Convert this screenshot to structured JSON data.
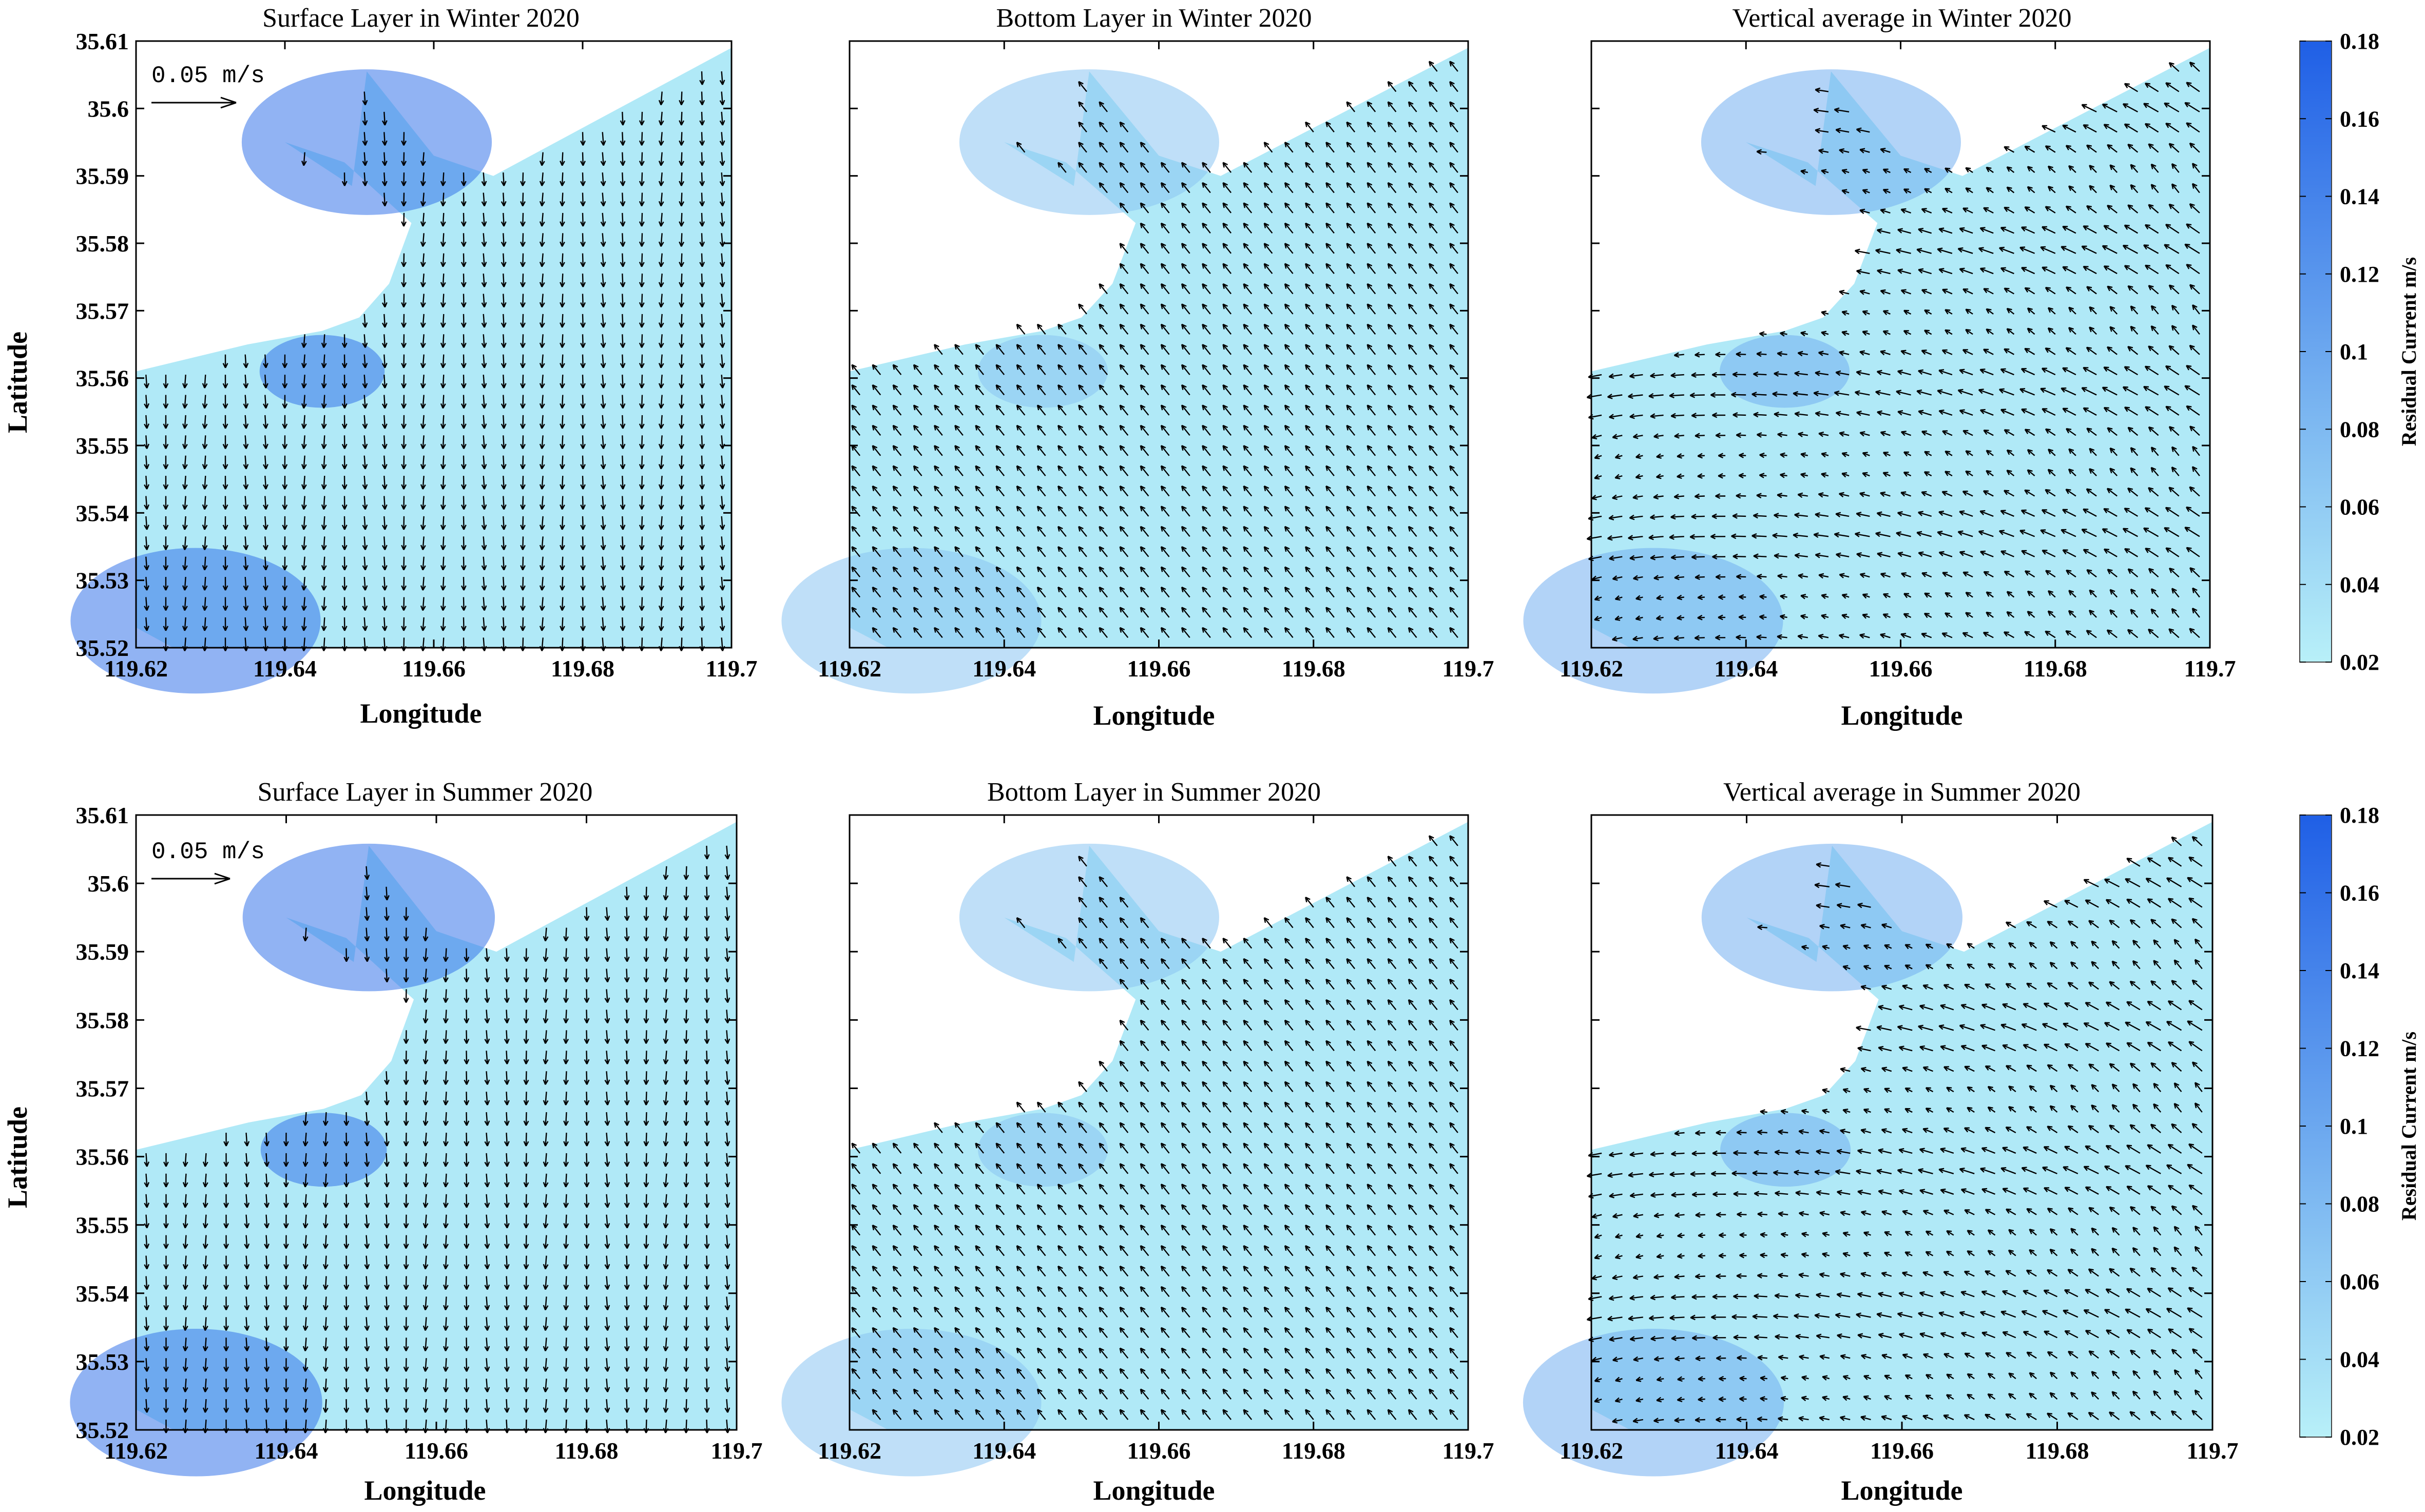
{
  "chart_data": {
    "type": "quiver-map",
    "panels": [
      {
        "title": "Surface Layer in Winter 2020",
        "row": 0,
        "col": 0,
        "scale_label": "0.05 m/s",
        "pattern": "surface"
      },
      {
        "title": "Bottom Layer in Winter 2020",
        "row": 0,
        "col": 1,
        "scale_label": "",
        "pattern": "bottom"
      },
      {
        "title": "Vertical average in Winter 2020",
        "row": 0,
        "col": 2,
        "scale_label": "",
        "pattern": "average"
      },
      {
        "title": "Surface Layer in Summer 2020",
        "row": 1,
        "col": 0,
        "scale_label": "0.05 m/s",
        "pattern": "surface"
      },
      {
        "title": "Bottom Layer in Summer 2020",
        "row": 1,
        "col": 1,
        "scale_label": "",
        "pattern": "bottom"
      },
      {
        "title": "Vertical average in Summer 2020",
        "row": 1,
        "col": 2,
        "scale_label": "",
        "pattern": "average"
      }
    ],
    "xlabel": "Longitude",
    "ylabel": "Latitude",
    "xlim": [
      119.62,
      119.7
    ],
    "ylim": [
      35.52,
      35.61
    ],
    "xticks": [
      "119.62",
      "119.64",
      "119.66",
      "119.68",
      "119.7"
    ],
    "yticks": [
      "35.52",
      "35.53",
      "35.54",
      "35.55",
      "35.56",
      "35.57",
      "35.58",
      "35.59",
      "35.6",
      "35.61"
    ],
    "colorbar": {
      "label": "Residual Current m/s",
      "range": [
        0.02,
        0.18
      ],
      "ticks": [
        "0.02",
        "0.04",
        "0.06",
        "0.08",
        "0.1",
        "0.12",
        "0.14",
        "0.16",
        "0.18"
      ],
      "color_low": "#b8f0f8",
      "color_high": "#1f5fe6"
    },
    "quiver_reference_speed": 0.05,
    "coastline_outline": [
      [
        119.62,
        35.561
      ],
      [
        119.635,
        35.565
      ],
      [
        119.645,
        35.567
      ],
      [
        119.65,
        35.569
      ],
      [
        119.654,
        35.574
      ],
      [
        119.657,
        35.583
      ],
      [
        119.648,
        35.592
      ],
      [
        119.64,
        35.595
      ],
      [
        119.649,
        35.5885
      ],
      [
        119.651,
        35.6055
      ],
      [
        119.66,
        35.593
      ],
      [
        119.668,
        35.59
      ],
      [
        119.7,
        35.609
      ],
      [
        119.7,
        35.52
      ],
      [
        119.625,
        35.52
      ],
      [
        119.62,
        35.523
      ]
    ]
  }
}
